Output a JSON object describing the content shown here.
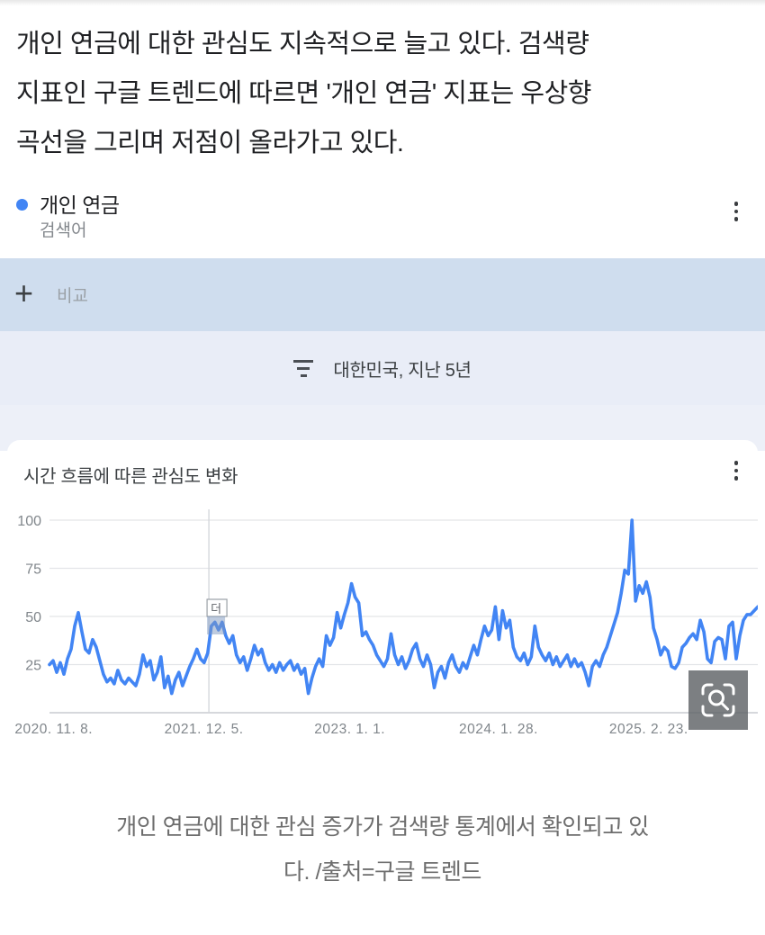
{
  "article": {
    "lines": [
      "개인 연금에 대한 관심도 지속적으로 늘고 있다. 검색량",
      "지표인 구글 트렌드에 따르면 '개인 연금' 지표는 우상향",
      "곡선을 그리며 저점이 올라가고 있다."
    ]
  },
  "trends_widget": {
    "term": {
      "label": "개인 연금",
      "type_label": "검색어",
      "dot_color": "#4285f4"
    },
    "compare": {
      "placeholder": "비교",
      "plus_glyph": "+"
    },
    "filter": {
      "label": "대한민국, 지난 5년"
    },
    "icons": {
      "term_menu": "kebab-menu-icon",
      "chart_menu": "kebab-menu-icon",
      "compare_add": "plus-icon",
      "filter": "filter-list-icon",
      "zoom_overlay": "magnifier-viewfinder-icon"
    }
  },
  "chart_data": {
    "type": "line",
    "title": "시간 흐름에 따른 관심도 변화",
    "series_name": "개인 연금",
    "xlabel": "",
    "ylabel": "",
    "ylim": [
      0,
      100
    ],
    "yticks": [
      25,
      50,
      75,
      100
    ],
    "grid": true,
    "line_color": "#4285f4",
    "axis_color": "#c9ccd1",
    "grid_color": "#e3e5e8",
    "tick_label_color": "#80868b",
    "xticks": [
      {
        "label": "2020. 11. 8.",
        "pos": 0.006
      },
      {
        "label": "2021. 12. 5.",
        "pos": 0.218
      },
      {
        "label": "2023. 1. 1.",
        "pos": 0.424
      },
      {
        "label": "2024. 1. 28.",
        "pos": 0.634
      },
      {
        "label": "2025. 2. 23.",
        "pos": 0.846
      }
    ],
    "crosshair_pos": 0.225,
    "tooltip_fragment": "더",
    "values": [
      25,
      27,
      21,
      26,
      20,
      28,
      33,
      45,
      52,
      42,
      33,
      31,
      38,
      34,
      27,
      20,
      16,
      18,
      15,
      22,
      17,
      15,
      18,
      16,
      14,
      20,
      30,
      24,
      27,
      17,
      21,
      29,
      13,
      19,
      10,
      17,
      21,
      14,
      19,
      24,
      28,
      33,
      28,
      26,
      31,
      45,
      47,
      43,
      47,
      40,
      36,
      40,
      30,
      26,
      29,
      22,
      28,
      35,
      30,
      33,
      26,
      22,
      25,
      21,
      26,
      22,
      25,
      27,
      22,
      25,
      20,
      23,
      10,
      18,
      24,
      28,
      24,
      40,
      35,
      39,
      52,
      44,
      51,
      57,
      67,
      60,
      57,
      40,
      42,
      38,
      35,
      30,
      27,
      24,
      28,
      41,
      30,
      25,
      29,
      23,
      27,
      33,
      36,
      28,
      24,
      30,
      25,
      13,
      21,
      24,
      18,
      26,
      30,
      24,
      21,
      26,
      23,
      29,
      35,
      30,
      38,
      45,
      40,
      43,
      55,
      38,
      53,
      44,
      48,
      34,
      29,
      27,
      31,
      25,
      29,
      45,
      34,
      30,
      27,
      31,
      25,
      29,
      24,
      27,
      30,
      24,
      28,
      24,
      26,
      21,
      14,
      24,
      27,
      24,
      30,
      34,
      40,
      46,
      52,
      62,
      74,
      72,
      100,
      58,
      66,
      62,
      68,
      60,
      44,
      38,
      30,
      34,
      32,
      24,
      23,
      26,
      34,
      36,
      39,
      41,
      38,
      48,
      42,
      28,
      26,
      37,
      39,
      38,
      28,
      45,
      47,
      28,
      40,
      48,
      51,
      51,
      53,
      55
    ]
  },
  "caption": {
    "lines": [
      "개인 연금에 대한 관심 증가가 검색량 통계에서 확인되고 있",
      "다. /출처=구글 트렌드"
    ]
  }
}
